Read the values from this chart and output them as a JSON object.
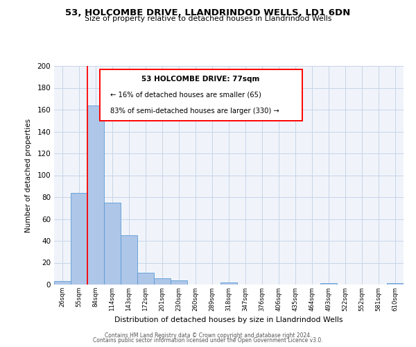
{
  "title1": "53, HOLCOMBE DRIVE, LLANDRINDOD WELLS, LD1 6DN",
  "title2": "Size of property relative to detached houses in Llandrindod Wells",
  "xlabel": "Distribution of detached houses by size in Llandrindod Wells",
  "ylabel": "Number of detached properties",
  "footer1": "Contains HM Land Registry data © Crown copyright and database right 2024.",
  "footer2": "Contains public sector information licensed under the Open Government Licence v3.0.",
  "bin_labels": [
    "26sqm",
    "55sqm",
    "84sqm",
    "114sqm",
    "143sqm",
    "172sqm",
    "201sqm",
    "230sqm",
    "260sqm",
    "289sqm",
    "318sqm",
    "347sqm",
    "376sqm",
    "406sqm",
    "435sqm",
    "464sqm",
    "493sqm",
    "522sqm",
    "552sqm",
    "581sqm",
    "610sqm"
  ],
  "bar_values": [
    3,
    84,
    164,
    75,
    45,
    11,
    6,
    4,
    0,
    0,
    2,
    0,
    0,
    0,
    0,
    0,
    1,
    0,
    0,
    0,
    1
  ],
  "bar_color": "#aec6e8",
  "bar_edge_color": "#5b9bd5",
  "annotation_box": {
    "title": "53 HOLCOMBE DRIVE: 77sqm",
    "line1": "← 16% of detached houses are smaller (65)",
    "line2": "83% of semi-detached houses are larger (330) →"
  },
  "ylim": [
    0,
    200
  ],
  "yticks": [
    0,
    20,
    40,
    60,
    80,
    100,
    120,
    140,
    160,
    180,
    200
  ],
  "bg_color": "#f0f4fa",
  "grid_color": "#c8d4e8"
}
